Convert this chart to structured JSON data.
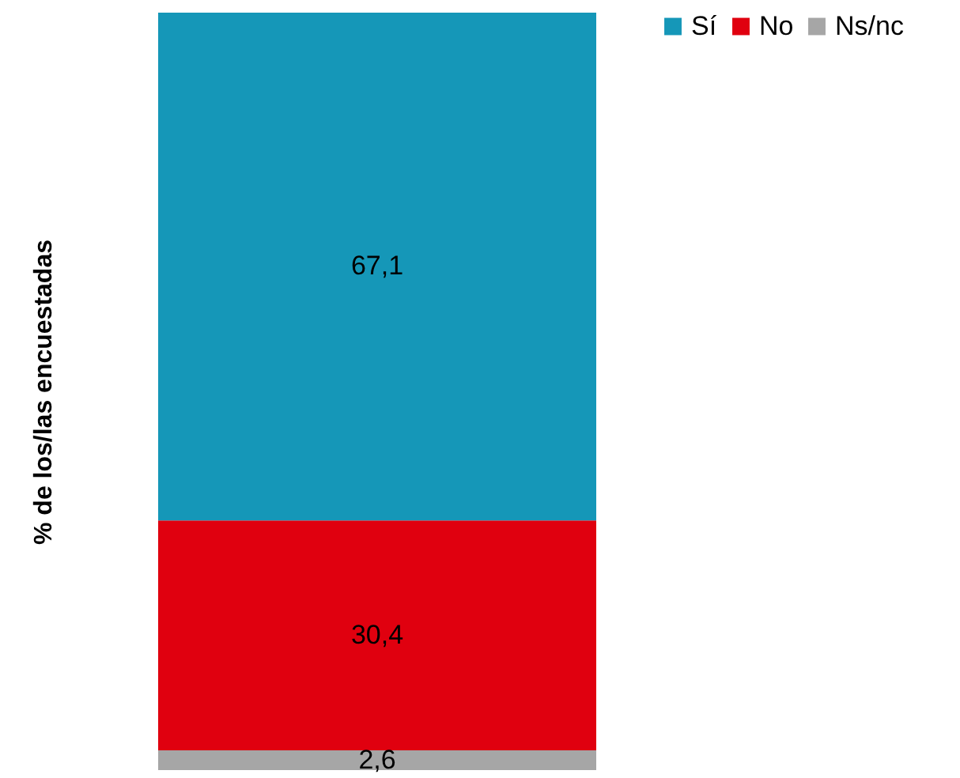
{
  "chart_data": {
    "type": "bar",
    "ylabel": "% de los/las encuestadas",
    "categories": [
      null
    ],
    "stacked": true,
    "legend": "right",
    "series": [
      {
        "name": "Ns/nc",
        "color": "#a6a6a6",
        "values": [
          2.6
        ],
        "value_labels": [
          "2,6"
        ]
      },
      {
        "name": "No",
        "color": "#e0000f",
        "values": [
          30.4
        ],
        "value_labels": [
          "30,4"
        ]
      },
      {
        "name": "Sí",
        "color": "#1597b8",
        "values": [
          67.1
        ],
        "value_labels": [
          "67,1"
        ]
      }
    ]
  }
}
